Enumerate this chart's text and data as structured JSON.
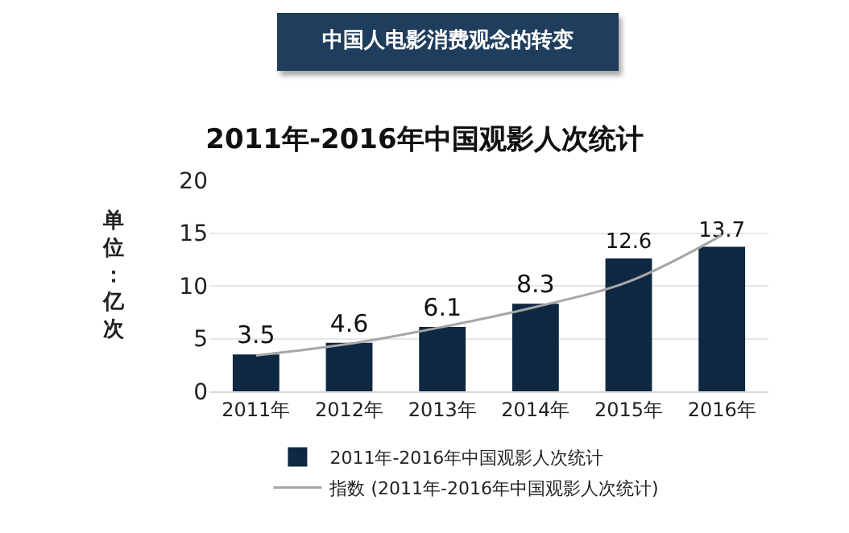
{
  "chart_data": {
    "type": "bar",
    "title": "中国人电影消费观念的转变",
    "subtitle": "2011年-2016年中国观影人次统计",
    "ylabel": "单位：亿次",
    "categories": [
      "2011年",
      "2012年",
      "2013年",
      "2014年",
      "2015年",
      "2016年"
    ],
    "series": [
      {
        "name": "2011年-2016年中国观影人次统计",
        "color": "#0e2841",
        "values": [
          3.5,
          4.6,
          6.1,
          8.3,
          12.6,
          13.7
        ],
        "value_labels": [
          "3.5",
          "4.6",
          "6.1",
          "8.3",
          "12.6",
          "13.7"
        ]
      },
      {
        "name": "指数 (2011年-2016年中国观影人次统计)",
        "type": "line",
        "color": "#a6a6a6",
        "x": [
          "2011年",
          "2012年",
          "2013年",
          "2014年",
          "2015年",
          "2016年"
        ],
        "values": [
          3.4,
          4.5,
          6.1,
          8.0,
          10.4,
          14.8
        ]
      }
    ],
    "ylim": [
      0,
      20
    ],
    "yticks": [
      0,
      5,
      10,
      15,
      20
    ],
    "grid": "y",
    "legend": "bottom",
    "marker": "none",
    "line_style": "solid"
  }
}
